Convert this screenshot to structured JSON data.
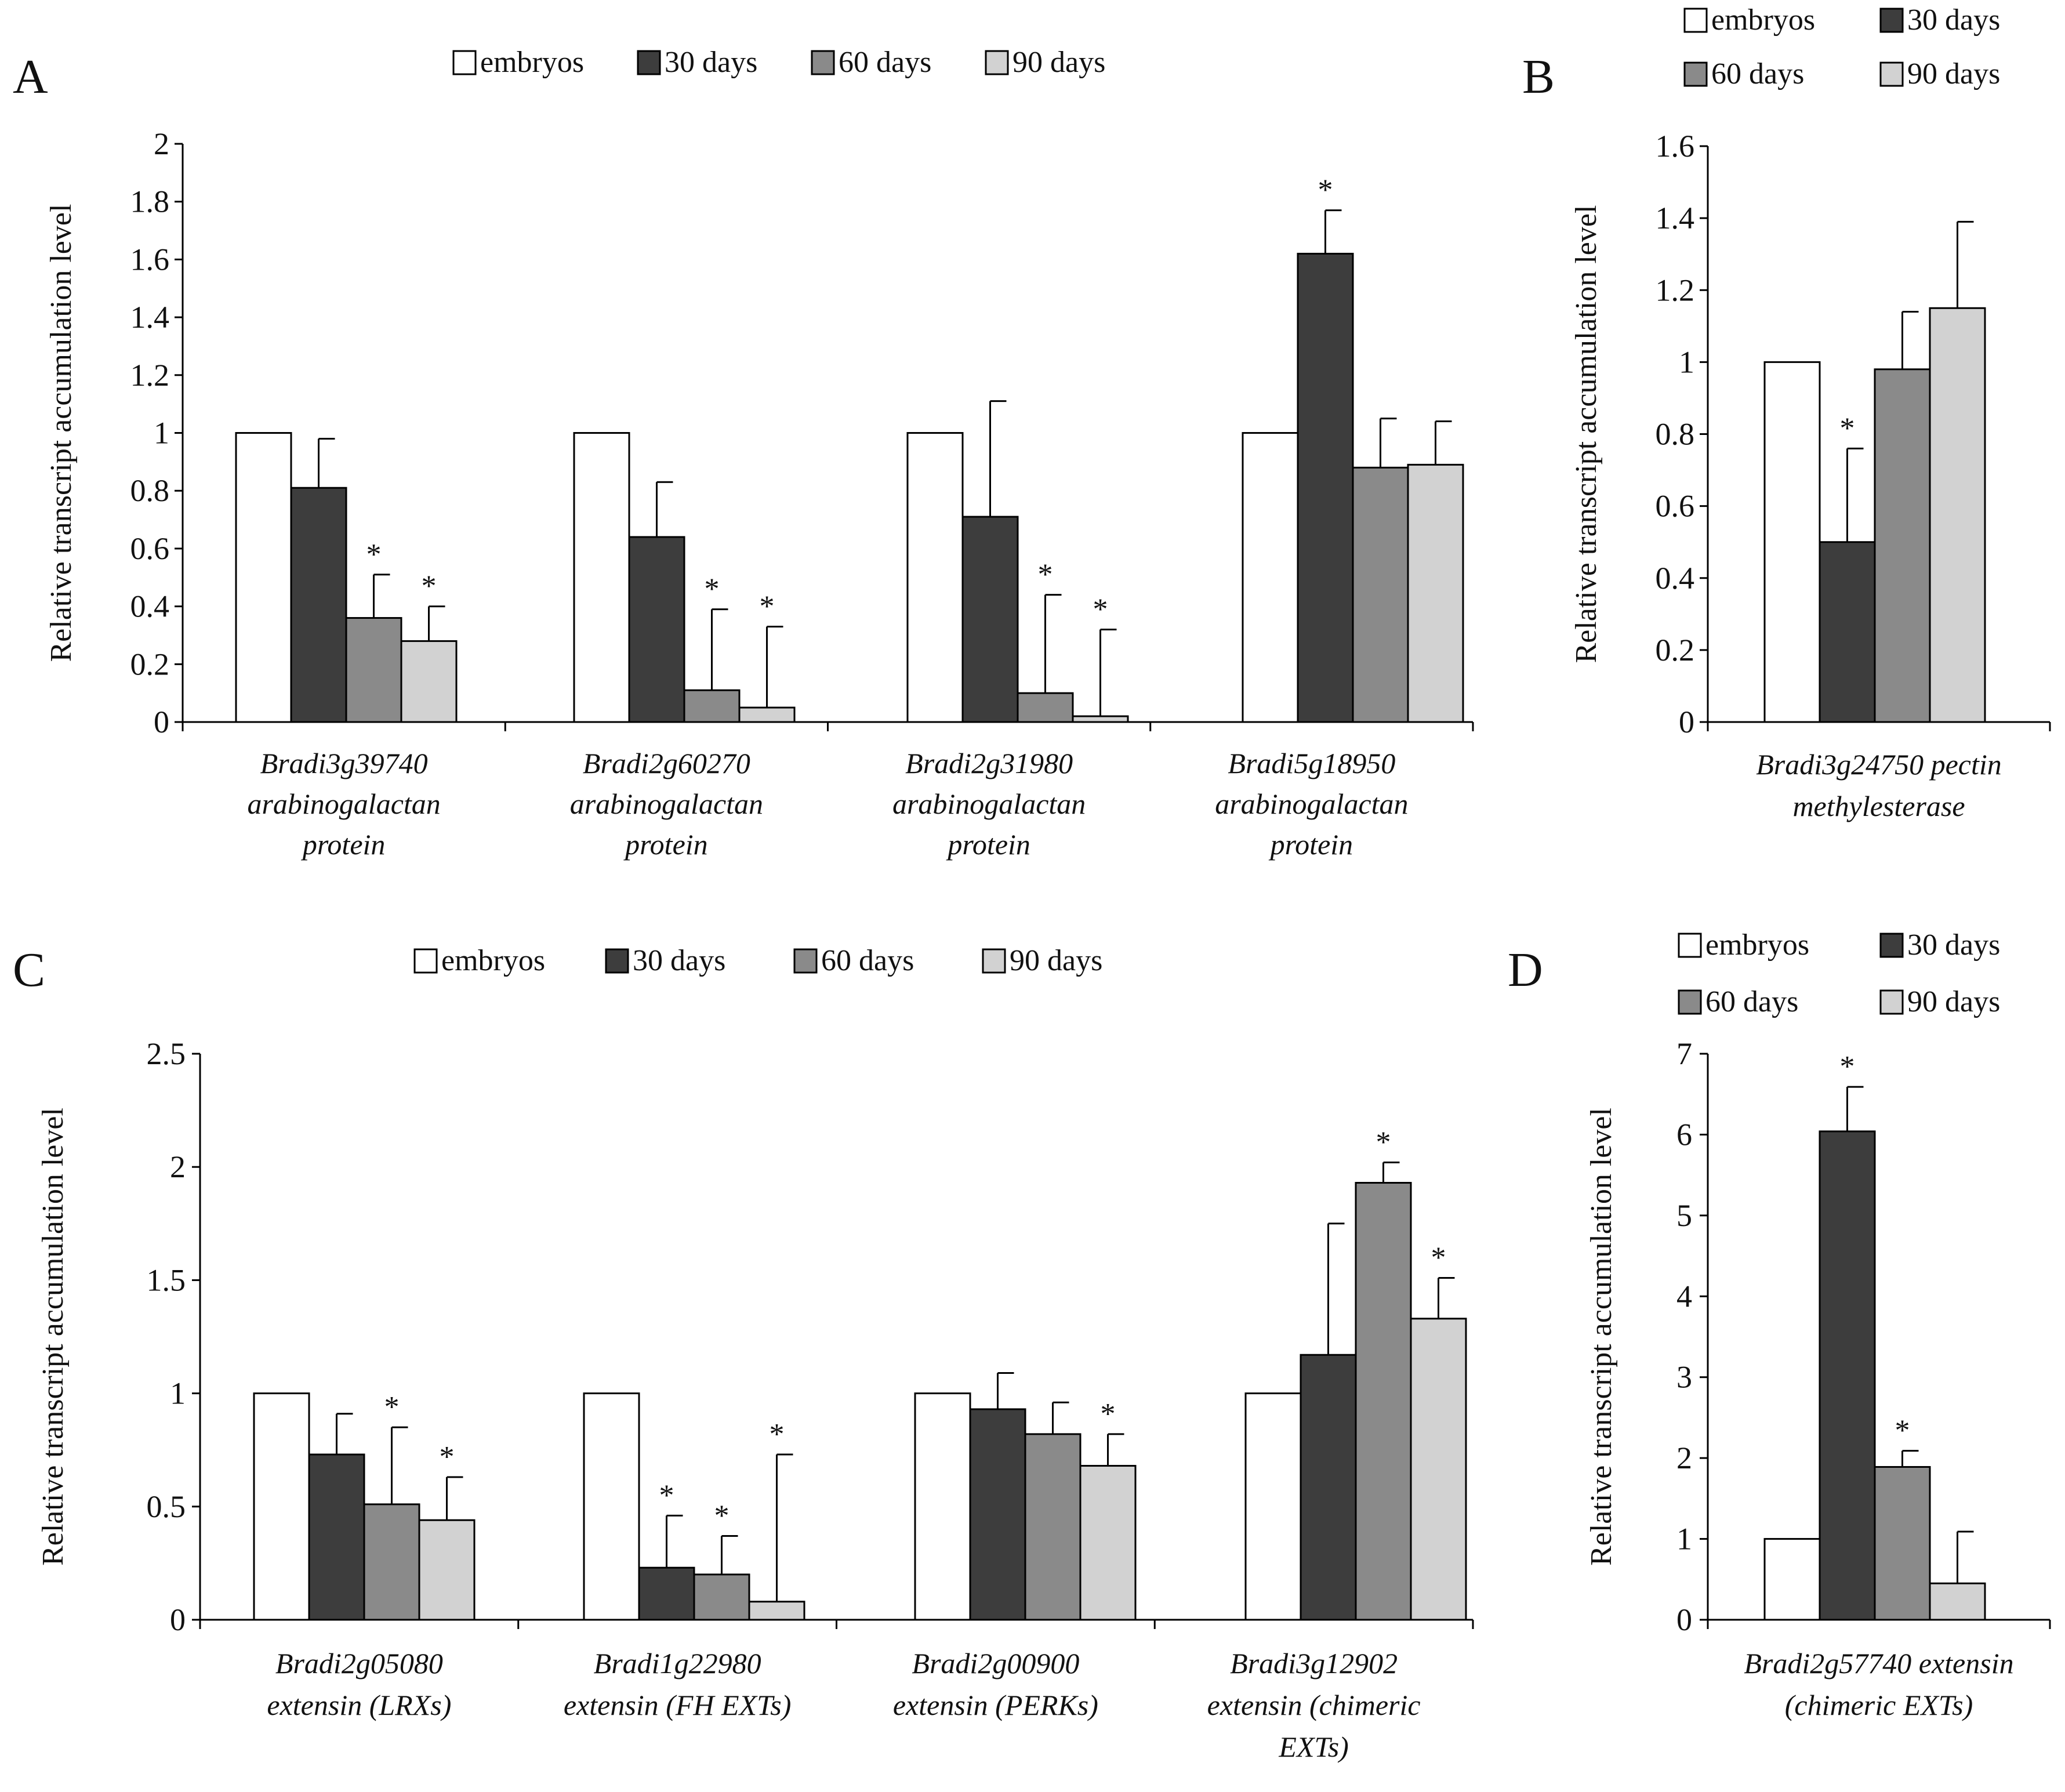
{
  "colors": {
    "embryos": "#ffffff",
    "30 days": "#3d3d3d",
    "60 days": "#8a8a8a",
    "90 days": "#d2d2d2",
    "axis": "#000000"
  },
  "legend_items": [
    "embryos",
    "30 days",
    "60 days",
    "90 days"
  ],
  "chart_data": [
    {
      "panel": "A",
      "type": "bar",
      "ylabel": "Relative transcript accumulation level",
      "ylim": [
        0,
        2
      ],
      "yticks": [
        0,
        0.2,
        0.4,
        0.6,
        0.8,
        1,
        1.2,
        1.4,
        1.6,
        1.8,
        2
      ],
      "ytick_labels": [
        "0",
        "0.2",
        "0.4",
        "0.6",
        "0.8",
        "1",
        "1.2",
        "1.4",
        "1.6",
        "1.8",
        "2"
      ],
      "legend_position": "top",
      "categories": [
        [
          "Bradi3g39740",
          "arabinogalactan",
          "protein"
        ],
        [
          "Bradi2g60270",
          "arabinogalactan",
          "protein"
        ],
        [
          "Bradi2g31980",
          "arabinogalactan",
          "protein"
        ],
        [
          "Bradi5g18950",
          "arabinogalactan",
          "protein"
        ]
      ],
      "series": [
        {
          "name": "embryos",
          "values": [
            1,
            1,
            1,
            1
          ],
          "errors": [
            0,
            0,
            0,
            0
          ],
          "significant": [
            false,
            false,
            false,
            false
          ]
        },
        {
          "name": "30 days",
          "values": [
            0.81,
            0.64,
            0.71,
            1.62
          ],
          "errors": [
            0.17,
            0.19,
            0.4,
            0.15
          ],
          "significant": [
            false,
            false,
            false,
            true
          ]
        },
        {
          "name": "60 days",
          "values": [
            0.36,
            0.11,
            0.1,
            0.88
          ],
          "errors": [
            0.15,
            0.28,
            0.34,
            0.17
          ],
          "significant": [
            true,
            true,
            true,
            false
          ]
        },
        {
          "name": "90 days",
          "values": [
            0.28,
            0.05,
            0.02,
            0.89
          ],
          "errors": [
            0.12,
            0.28,
            0.3,
            0.15
          ],
          "significant": [
            true,
            true,
            true,
            false
          ]
        }
      ]
    },
    {
      "panel": "B",
      "type": "bar",
      "ylabel": "Relative transcript accumulation level",
      "ylim": [
        0,
        1.6
      ],
      "yticks": [
        0,
        0.2,
        0.4,
        0.6,
        0.8,
        1,
        1.2,
        1.4,
        1.6
      ],
      "ytick_labels": [
        "0",
        "0.2",
        "0.4",
        "0.6",
        "0.8",
        "1",
        "1.2",
        "1.4",
        "1.6"
      ],
      "legend_position": "top-right",
      "categories": [
        [
          "Bradi3g24750 pectin",
          "methylesterase"
        ]
      ],
      "series": [
        {
          "name": "embryos",
          "values": [
            1
          ],
          "errors": [
            0
          ],
          "significant": [
            false
          ]
        },
        {
          "name": "30 days",
          "values": [
            0.5
          ],
          "errors": [
            0.26
          ],
          "significant": [
            true
          ]
        },
        {
          "name": "60 days",
          "values": [
            0.98
          ],
          "errors": [
            0.16
          ],
          "significant": [
            false
          ]
        },
        {
          "name": "90 days",
          "values": [
            1.15
          ],
          "errors": [
            0.24
          ],
          "significant": [
            false
          ]
        }
      ]
    },
    {
      "panel": "C",
      "type": "bar",
      "ylabel": "Relative transcript accumulation level",
      "ylim": [
        0,
        2.5
      ],
      "yticks": [
        0,
        0.5,
        1,
        1.5,
        2,
        2.5
      ],
      "ytick_labels": [
        "0",
        "0.5",
        "1",
        "1.5",
        "2",
        "2.5"
      ],
      "legend_position": "top",
      "categories": [
        [
          "Bradi2g05080",
          "extensin (LRXs)"
        ],
        [
          "Bradi1g22980",
          "extensin (FH EXTs)"
        ],
        [
          "Bradi2g00900",
          "extensin (PERKs)"
        ],
        [
          "Bradi3g12902",
          "extensin (chimeric",
          "EXTs)"
        ]
      ],
      "series": [
        {
          "name": "embryos",
          "values": [
            1,
            1,
            1,
            1
          ],
          "errors": [
            0,
            0,
            0,
            0
          ],
          "significant": [
            false,
            false,
            false,
            false
          ]
        },
        {
          "name": "30 days",
          "values": [
            0.73,
            0.23,
            0.93,
            1.17
          ],
          "errors": [
            0.18,
            0.23,
            0.16,
            0.58
          ],
          "significant": [
            false,
            true,
            false,
            false
          ]
        },
        {
          "name": "60 days",
          "values": [
            0.51,
            0.2,
            0.82,
            1.93
          ],
          "errors": [
            0.34,
            0.17,
            0.14,
            0.09
          ],
          "significant": [
            true,
            true,
            false,
            true
          ]
        },
        {
          "name": "90 days",
          "values": [
            0.44,
            0.08,
            0.68,
            1.33
          ],
          "errors": [
            0.19,
            0.65,
            0.14,
            0.18
          ],
          "significant": [
            true,
            true,
            true,
            true
          ]
        }
      ]
    },
    {
      "panel": "D",
      "type": "bar",
      "ylabel": "Relative transcript accumulation level",
      "ylim": [
        0,
        7
      ],
      "yticks": [
        0,
        1,
        2,
        3,
        4,
        5,
        6,
        7
      ],
      "ytick_labels": [
        "0",
        "1",
        "2",
        "3",
        "4",
        "5",
        "6",
        "7"
      ],
      "legend_position": "top-right",
      "categories": [
        [
          "Bradi2g57740 extensin",
          "(chimeric EXTs)"
        ]
      ],
      "series": [
        {
          "name": "embryos",
          "values": [
            1
          ],
          "errors": [
            0
          ],
          "significant": [
            false
          ]
        },
        {
          "name": "30 days",
          "values": [
            6.04
          ],
          "errors": [
            0.55
          ],
          "significant": [
            true
          ]
        },
        {
          "name": "60 days",
          "values": [
            1.89
          ],
          "errors": [
            0.2
          ],
          "significant": [
            true
          ]
        },
        {
          "name": "90 days",
          "values": [
            0.45
          ],
          "errors": [
            0.64
          ],
          "significant": [
            false
          ]
        }
      ]
    }
  ]
}
